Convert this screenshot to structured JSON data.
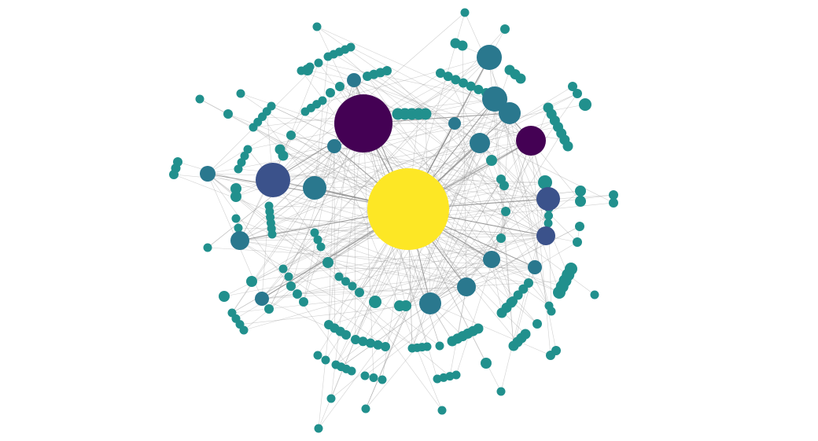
{
  "graph": {
    "colors": {
      "hub": "#fde725",
      "major": "#440154",
      "secondary": "#3b528b",
      "minor": "#2a788e",
      "leaf": "#21908d",
      "edge": "#9a9a9a"
    },
    "hub_label_lines": [
      "",
      "",
      "",
      "",
      "",
      "",
      "",
      "",
      "",
      "",
      ""
    ]
  }
}
